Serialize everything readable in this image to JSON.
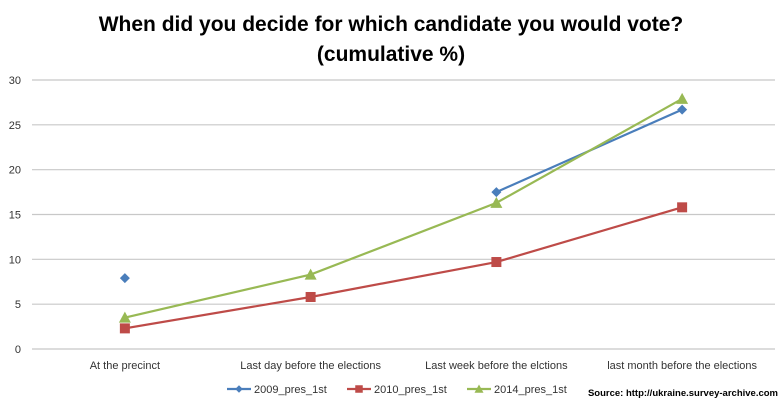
{
  "chart_data": {
    "type": "line",
    "title": "When did you decide for which candidate you would vote?",
    "subtitle": "(cumulative %)",
    "xlabel": "",
    "ylabel": "",
    "ylim": [
      0,
      30
    ],
    "yticks": [
      0,
      5,
      10,
      15,
      20,
      25,
      30
    ],
    "grid": true,
    "legend_position": "bottom",
    "categories": [
      "At the precinct",
      "Last day before  the elections",
      "Last week before the elctions",
      "last month before the elections"
    ],
    "series": [
      {
        "name": "2009_pres_1st",
        "color": "#4a7ebb",
        "marker": "diamond",
        "values": [
          7.9,
          null,
          17.5,
          26.7
        ]
      },
      {
        "name": "2010_pres_1st",
        "color": "#be4b48",
        "marker": "square",
        "values": [
          2.3,
          5.8,
          9.7,
          15.8
        ]
      },
      {
        "name": "2014_pres_1st",
        "color": "#98b954",
        "marker": "triangle",
        "values": [
          3.5,
          8.3,
          16.3,
          27.9
        ]
      }
    ],
    "annotations": [
      "Source: http://ukraine.survey-archive.com"
    ]
  },
  "source_text": "Source: http://ukraine.survey-archive.com"
}
